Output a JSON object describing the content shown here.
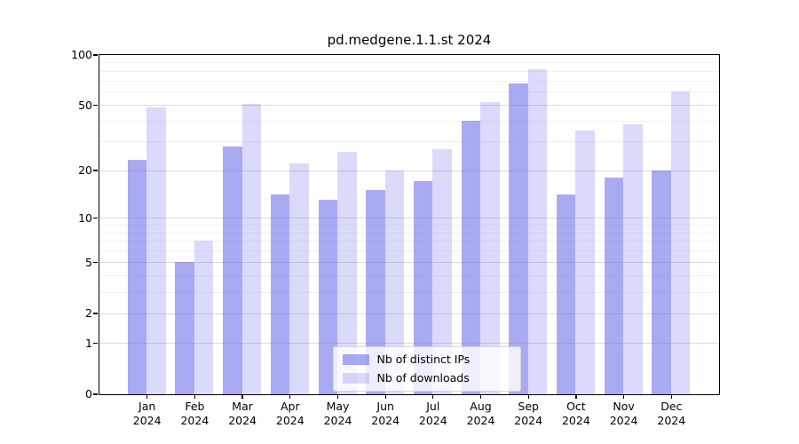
{
  "title": "pd.medgene.1.1.st 2024",
  "accent_color": "#5555e6",
  "chart_data": {
    "type": "bar",
    "title": "pd.medgene.1.1.st 2024",
    "xlabel": "",
    "ylabel": "",
    "year": "2024",
    "categories": [
      "Jan",
      "Feb",
      "Mar",
      "Apr",
      "May",
      "Jun",
      "Jul",
      "Aug",
      "Sep",
      "Oct",
      "Nov",
      "Dec"
    ],
    "series": [
      {
        "key": "distinct-ips",
        "name": "Nb of distinct IPs",
        "color": "rgba(85,85,230,0.5)",
        "values": [
          23,
          5,
          28,
          14,
          13,
          15,
          17,
          40,
          67,
          14,
          18,
          20
        ]
      },
      {
        "key": "downloads",
        "name": "Nb of downloads",
        "color": "rgba(85,85,230,0.22)",
        "values": [
          48,
          7,
          51,
          22,
          26,
          20,
          27,
          52,
          82,
          35,
          38,
          60
        ]
      }
    ],
    "y_scale": "log1p",
    "ylim": [
      0,
      100
    ],
    "y_major_ticks": [
      0,
      1,
      2,
      5,
      10,
      20,
      50,
      100
    ],
    "y_minor_gridlines": [
      3,
      4,
      6,
      7,
      8,
      9,
      30,
      40,
      60,
      70,
      80,
      90
    ],
    "grid": true,
    "legend_position": "lower center"
  }
}
